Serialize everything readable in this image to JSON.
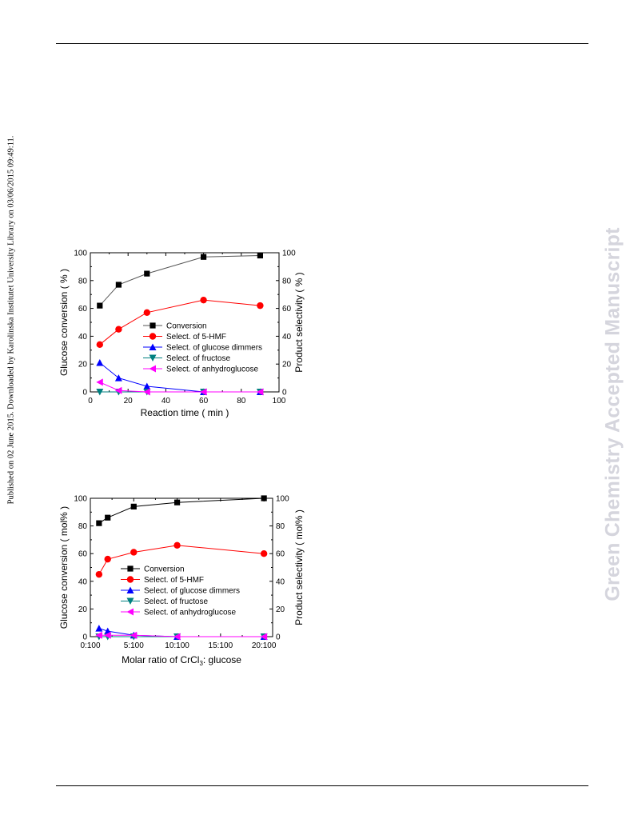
{
  "side_note": "Published on 02 June 2015. Downloaded by Karolinska Institutet University Library on 03/06/2015 09:49:11.",
  "watermark": "Green Chemistry Accepted Manuscript",
  "chart_data": [
    {
      "type": "line",
      "xlabel": "Reaction time ( min )",
      "ylabel_left": "Glucose conversion ( % )",
      "ylabel_right": "Product selectivity ( % )",
      "xlim": [
        0,
        100
      ],
      "ylim": [
        0,
        100
      ],
      "x_ticks": [
        0,
        20,
        40,
        60,
        80,
        100
      ],
      "x_tick_labels": [
        "0",
        "20",
        "40",
        "60",
        "80",
        "100"
      ],
      "y_ticks": [
        0,
        20,
        40,
        60,
        80,
        100
      ],
      "legend_position": "lower-right",
      "grid": false,
      "x": [
        5,
        15,
        30,
        60,
        90
      ],
      "series": [
        {
          "name": "Conversion",
          "color": "#000000",
          "line_color": "#555555",
          "marker": "square",
          "values": [
            62,
            77,
            85,
            97,
            98
          ]
        },
        {
          "name": "Select. of 5-HMF",
          "color": "#ff0000",
          "marker": "circle",
          "values": [
            34,
            45,
            57,
            66,
            62
          ]
        },
        {
          "name": "Select. of glucose dimmers",
          "color": "#0000ff",
          "marker": "triangle-up",
          "values": [
            21,
            10,
            4,
            0,
            0
          ]
        },
        {
          "name": "Select. of fructose",
          "color": "#008080",
          "marker": "triangle-down",
          "values": [
            0,
            0,
            0,
            0,
            0
          ]
        },
        {
          "name": "Select. of anhydroglucose",
          "color": "#ff00ff",
          "marker": "triangle-left",
          "values": [
            7,
            1,
            0,
            0,
            0
          ]
        }
      ]
    },
    {
      "type": "line",
      "xlabel": "Molar ratio of CrCl3: glucose",
      "ylabel_left": "Glucose conversion ( mol% )",
      "ylabel_right": "Product selectivity ( mol% )",
      "xlim": [
        0,
        21
      ],
      "ylim": [
        0,
        100
      ],
      "x_ticks": [
        0,
        5,
        10,
        15,
        20
      ],
      "x_tick_labels": [
        "0:100",
        "5:100",
        "10:100",
        "15:100",
        "20:100"
      ],
      "y_ticks": [
        0,
        20,
        40,
        60,
        80,
        100
      ],
      "legend_position": "lower-left",
      "grid": false,
      "x": [
        1,
        2,
        5,
        10,
        20
      ],
      "series": [
        {
          "name": "Conversion",
          "color": "#000000",
          "line_color": "#000000",
          "marker": "square",
          "values": [
            82,
            86,
            94,
            97,
            100
          ]
        },
        {
          "name": "Select. of 5-HMF",
          "color": "#ff0000",
          "marker": "circle",
          "values": [
            45,
            56,
            61,
            66,
            60
          ]
        },
        {
          "name": "Select. of glucose dimmers",
          "color": "#0000ff",
          "marker": "triangle-up",
          "values": [
            6,
            4,
            1,
            0,
            0
          ]
        },
        {
          "name": "Select. of fructose",
          "color": "#008080",
          "marker": "triangle-down",
          "values": [
            0,
            0,
            0,
            0,
            0
          ]
        },
        {
          "name": "Select. of anhydroglucose",
          "color": "#ff00ff",
          "marker": "triangle-left",
          "values": [
            1,
            1,
            1,
            0,
            0
          ]
        }
      ]
    }
  ]
}
